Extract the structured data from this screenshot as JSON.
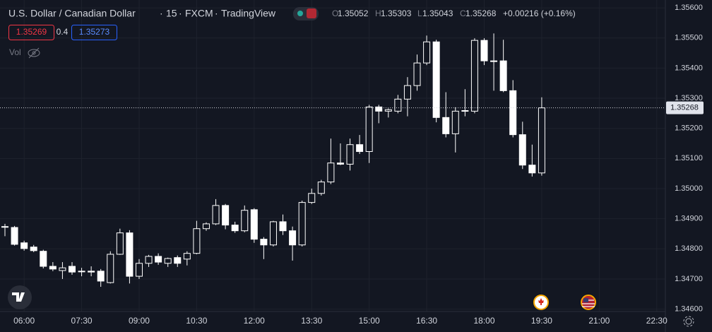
{
  "header": {
    "symbol": "U.S. Dollar / Canadian Dollar",
    "separator": "·",
    "interval": "15",
    "source": "FXCM",
    "platform": "TradingView",
    "open_label": "O",
    "high_label": "H",
    "low_label": "L",
    "close_label": "C",
    "change": "+0.00216 (+0.16%)",
    "bid": "1.35269",
    "spread": "0.4",
    "ask": "1.35273",
    "volume_label": "Vol"
  },
  "chart_data": {
    "type": "candlestick",
    "x": [
      null,
      null,
      "06:00",
      null,
      null,
      null,
      null,
      null,
      "07:30",
      null,
      null,
      null,
      null,
      null,
      "09:00",
      null,
      null,
      null,
      null,
      null,
      "10:30",
      null,
      null,
      null,
      null,
      null,
      "12:00",
      null,
      null,
      null,
      null,
      null,
      "13:30",
      null,
      null,
      null,
      null,
      null,
      "15:00",
      null,
      null,
      null,
      null,
      null,
      "16:30",
      null,
      null,
      null,
      null,
      null,
      "18:00",
      null,
      null,
      null,
      null,
      null,
      "19:30",
      null,
      null,
      null,
      null,
      null,
      "21:00",
      null,
      null,
      null,
      null,
      null,
      "22:30"
    ],
    "open": [
      1.34874,
      1.34871,
      1.3482,
      1.34806,
      1.34792,
      1.34742,
      1.34728,
      1.34742,
      1.34726,
      1.34726,
      1.34726,
      1.34688,
      1.34782,
      1.34853,
      1.34709,
      1.34752,
      1.34775,
      1.34752,
      1.34771,
      1.34766,
      1.34785,
      1.34867,
      1.34883,
      1.34944,
      1.34879,
      1.3486,
      1.3493,
      1.34832,
      1.34813,
      1.3489,
      1.3486,
      1.34813,
      1.34954,
      1.34984,
      1.35022,
      1.35085,
      1.35081,
      1.35146,
      1.35123,
      1.35271,
      1.35257,
      1.35257,
      1.35297,
      1.35342,
      1.35417,
      1.35487,
      1.35236,
      1.35182,
      1.35257,
      1.35257,
      1.35492,
      1.35424,
      1.35424,
      1.35325,
      1.35179,
      1.35078,
      1.35052,
      null,
      null,
      null,
      null,
      null,
      null,
      null,
      null,
      null,
      null,
      null,
      null
    ],
    "high": [
      1.34883,
      1.34876,
      1.34827,
      1.34813,
      1.34797,
      1.34756,
      1.34756,
      1.34756,
      1.34737,
      1.34742,
      1.34733,
      1.34792,
      1.34867,
      1.34862,
      1.34766,
      1.3478,
      1.34785,
      1.34771,
      1.34778,
      1.34792,
      1.34893,
      1.34888,
      1.34965,
      1.34949,
      1.3489,
      1.34944,
      1.34935,
      1.34839,
      1.34893,
      1.34914,
      1.34874,
      1.3496,
      1.35,
      1.35029,
      1.35166,
      1.3515,
      1.35166,
      1.35178,
      1.35278,
      1.35278,
      1.35266,
      1.35311,
      1.3537,
      1.35445,
      1.35508,
      1.35494,
      1.3532,
      1.3527,
      1.3533,
      1.35499,
      1.35499,
      1.35515,
      1.35494,
      1.3536,
      1.35222,
      1.35146,
      1.35303,
      null,
      null,
      null,
      null,
      null,
      null,
      null,
      null,
      null,
      null,
      null,
      null
    ],
    "low": [
      1.34842,
      1.34811,
      1.34794,
      1.34789,
      1.34735,
      1.34726,
      1.347,
      1.34714,
      1.34709,
      1.34709,
      1.34674,
      1.34685,
      1.3478,
      1.34685,
      1.347,
      1.3474,
      1.34747,
      1.3474,
      1.3474,
      1.34745,
      1.34782,
      1.3486,
      1.34879,
      1.34865,
      1.34853,
      1.34855,
      1.3482,
      1.34766,
      1.34808,
      1.34846,
      1.34761,
      1.34808,
      1.34949,
      1.34977,
      1.35015,
      1.35078,
      1.3506,
      1.35115,
      1.35085,
      1.35217,
      1.35236,
      1.3525,
      1.3524,
      1.35325,
      1.3541,
      1.3522,
      1.3517,
      1.3512,
      1.3524,
      1.3525,
      1.3541,
      1.35325,
      1.3532,
      1.3517,
      1.35065,
      1.3504,
      1.35043,
      null,
      null,
      null,
      null,
      null,
      null,
      null,
      null,
      null,
      null,
      null,
      null
    ],
    "close": [
      1.34874,
      1.34815,
      1.34801,
      1.34794,
      1.34742,
      1.34733,
      1.34737,
      1.34723,
      1.34726,
      1.34723,
      1.34693,
      1.34782,
      1.34853,
      1.34709,
      1.34752,
      1.34775,
      1.34756,
      1.34768,
      1.34752,
      1.34785,
      1.34867,
      1.34883,
      1.34944,
      1.34879,
      1.3486,
      1.34928,
      1.34832,
      1.34813,
      1.3489,
      1.3486,
      1.34813,
      1.34954,
      1.34984,
      1.35022,
      1.35085,
      1.35081,
      1.35146,
      1.35123,
      1.35271,
      1.35257,
      1.35262,
      1.35297,
      1.35342,
      1.35417,
      1.35487,
      1.35236,
      1.35182,
      1.35257,
      1.35259,
      1.35492,
      1.35424,
      1.35424,
      1.35325,
      1.35179,
      1.35078,
      1.35052,
      1.35268,
      null,
      null,
      null,
      null,
      null,
      null,
      null,
      null,
      null,
      null,
      null,
      null
    ],
    "up_color": "#ffffff",
    "down_color": "#ffffff",
    "ylim": [
      1.34592,
      1.35626
    ],
    "yticks": [
      {
        "value": 1.346,
        "label": "1.34600"
      },
      {
        "value": 1.347,
        "label": "1.34700"
      },
      {
        "value": 1.348,
        "label": "1.34800"
      },
      {
        "value": 1.349,
        "label": "1.34900"
      },
      {
        "value": 1.35,
        "label": "1.35000"
      },
      {
        "value": 1.351,
        "label": "1.35100"
      },
      {
        "value": 1.352,
        "label": "1.35200"
      },
      {
        "value": 1.353,
        "label": "1.35300"
      },
      {
        "value": 1.354,
        "label": "1.35400"
      },
      {
        "value": 1.355,
        "label": "1.35500"
      },
      {
        "value": 1.356,
        "label": "1.35600"
      }
    ],
    "grid": true
  }
}
